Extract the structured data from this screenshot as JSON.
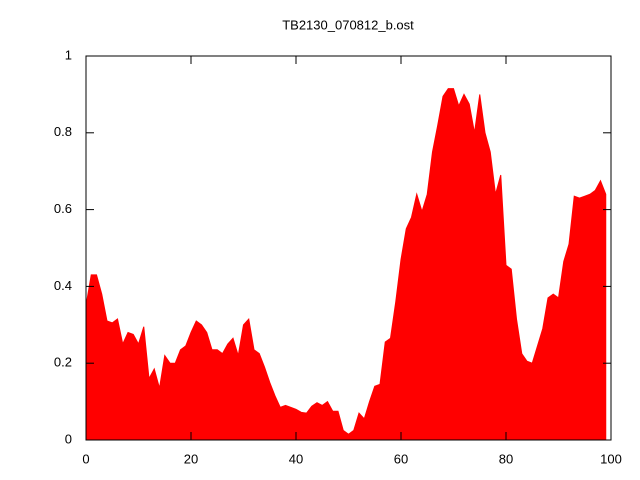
{
  "chart_data": {
    "type": "area",
    "title": "TB2130_070812_b.ost",
    "color": "#ff0000",
    "x": [
      0,
      1,
      2,
      3,
      4,
      5,
      6,
      7,
      8,
      9,
      10,
      11,
      12,
      13,
      14,
      15,
      16,
      17,
      18,
      19,
      20,
      21,
      22,
      23,
      24,
      25,
      26,
      27,
      28,
      29,
      30,
      31,
      32,
      33,
      34,
      35,
      36,
      37,
      38,
      39,
      40,
      41,
      42,
      43,
      44,
      45,
      46,
      47,
      48,
      49,
      50,
      51,
      52,
      53,
      54,
      55,
      56,
      57,
      58,
      59,
      60,
      61,
      62,
      63,
      64,
      65,
      66,
      67,
      68,
      69,
      70,
      71,
      72,
      73,
      74,
      75,
      76,
      77,
      78,
      79,
      80,
      81,
      82,
      83,
      84,
      85,
      86,
      87,
      88,
      89,
      90,
      91,
      92,
      93,
      94,
      95,
      96,
      97,
      98,
      99
    ],
    "values": [
      0.35,
      0.43,
      0.43,
      0.38,
      0.31,
      0.305,
      0.315,
      0.25,
      0.28,
      0.275,
      0.25,
      0.295,
      0.16,
      0.185,
      0.135,
      0.22,
      0.2,
      0.2,
      0.235,
      0.245,
      0.28,
      0.31,
      0.3,
      0.28,
      0.235,
      0.235,
      0.225,
      0.25,
      0.265,
      0.22,
      0.3,
      0.315,
      0.235,
      0.225,
      0.19,
      0.15,
      0.115,
      0.085,
      0.09,
      0.085,
      0.08,
      0.072,
      0.07,
      0.088,
      0.097,
      0.09,
      0.1,
      0.075,
      0.075,
      0.025,
      0.015,
      0.025,
      0.07,
      0.055,
      0.1,
      0.14,
      0.145,
      0.255,
      0.265,
      0.36,
      0.47,
      0.55,
      0.58,
      0.64,
      0.595,
      0.64,
      0.75,
      0.82,
      0.895,
      0.915,
      0.915,
      0.87,
      0.9,
      0.875,
      0.8,
      0.9,
      0.8,
      0.75,
      0.64,
      0.69,
      0.455,
      0.445,
      0.315,
      0.225,
      0.205,
      0.2,
      0.245,
      0.29,
      0.37,
      0.38,
      0.37,
      0.465,
      0.51,
      0.635,
      0.63,
      0.635,
      0.64,
      0.65,
      0.675,
      0.64
    ],
    "xlim": [
      0,
      100
    ],
    "xticks": [
      0,
      20,
      40,
      60,
      80,
      100
    ],
    "ylim": [
      0,
      1
    ],
    "yticks": [
      0,
      0.2,
      0.4,
      0.6,
      0.8,
      1
    ]
  }
}
